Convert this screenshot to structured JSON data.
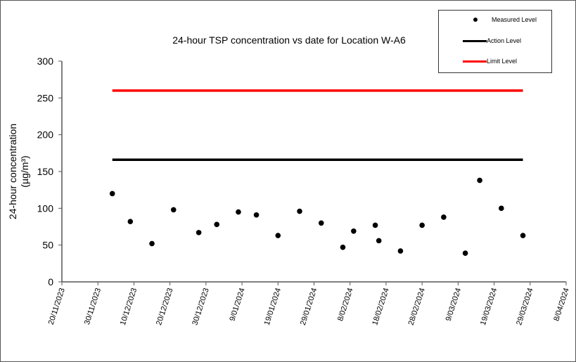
{
  "chart_data": {
    "type": "scatter",
    "title": "24-hour TSP concentration vs date for Location W-A6",
    "xlabel": "",
    "ylabel": "24-hour concentration",
    "ylabel_unit": "(µg/m³)",
    "ylim": [
      0,
      300
    ],
    "yticks": [
      "0",
      "50",
      "100",
      "150",
      "200",
      "250",
      "300"
    ],
    "xlim": [
      "2023-11-20",
      "2024-04-08"
    ],
    "xticks": [
      "20/11/2023",
      "30/11/2023",
      "10/12/2023",
      "20/12/2023",
      "30/12/2023",
      "9/01/2024",
      "19/01/2024",
      "29/01/2024",
      "8/02/2024",
      "18/02/2024",
      "28/02/2024",
      "9/03/2024",
      "19/03/2024",
      "29/03/2024",
      "8/04/2024"
    ],
    "grid": false,
    "legend_position": "top-right",
    "series": [
      {
        "name": "Measured Level",
        "kind": "points",
        "color": "#000000",
        "x": [
          "2023-12-04",
          "2023-12-09",
          "2023-12-15",
          "2023-12-21",
          "2023-12-28",
          "2024-01-02",
          "2024-01-08",
          "2024-01-13",
          "2024-01-19",
          "2024-01-25",
          "2024-01-31",
          "2024-02-06",
          "2024-02-09",
          "2024-02-15",
          "2024-02-16",
          "2024-02-22",
          "2024-02-28",
          "2024-03-05",
          "2024-03-11",
          "2024-03-15",
          "2024-03-21",
          "2024-03-27"
        ],
        "values": [
          120,
          82,
          52,
          98,
          67,
          78,
          95,
          91,
          63,
          96,
          80,
          47,
          69,
          77,
          56,
          42,
          77,
          88,
          39,
          138,
          100,
          63
        ]
      },
      {
        "name": "Action Level",
        "kind": "line",
        "color": "#000000",
        "x": [
          "2023-12-04",
          "2024-03-27"
        ],
        "values": [
          166,
          166
        ]
      },
      {
        "name": "Limit Level",
        "kind": "line",
        "color": "#ff0000",
        "x": [
          "2023-12-04",
          "2024-03-27"
        ],
        "values": [
          260,
          260
        ]
      }
    ]
  }
}
